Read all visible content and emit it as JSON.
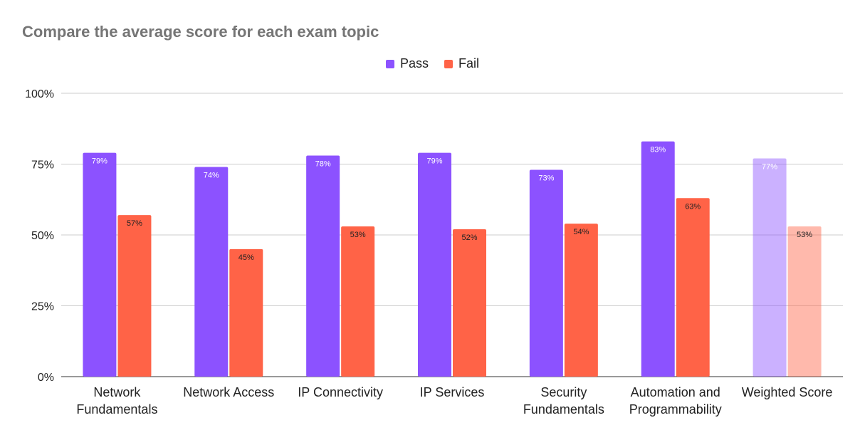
{
  "chart_data": {
    "type": "bar",
    "title": "Compare the average score for each exam topic",
    "categories": [
      [
        "Network",
        "Fundamentals"
      ],
      [
        "Network Access"
      ],
      [
        "IP Connectivity"
      ],
      [
        "IP Services"
      ],
      [
        "Security",
        "Fundamentals"
      ],
      [
        "Automation and",
        "Programmability"
      ],
      [
        "Weighted Score"
      ]
    ],
    "series": [
      {
        "name": "Pass",
        "color": "#8c52ff",
        "values": [
          79,
          74,
          78,
          79,
          73,
          83,
          77
        ],
        "labels": [
          "79%",
          "74%",
          "78%",
          "79%",
          "73%",
          "83%",
          "77%"
        ]
      },
      {
        "name": "Fail",
        "color": "#ff6347",
        "values": [
          57,
          45,
          53,
          52,
          54,
          63,
          53
        ],
        "labels": [
          "57%",
          "45%",
          "53%",
          "52%",
          "54%",
          "63%",
          "53%"
        ]
      }
    ],
    "highlight_faded_category_index": 6,
    "ylim": [
      0,
      100
    ],
    "yticks": [
      0,
      25,
      50,
      75,
      100
    ],
    "ytick_labels": [
      "0%",
      "25%",
      "50%",
      "75%",
      "100%"
    ],
    "xlabel": "",
    "ylabel": "",
    "grid": true,
    "legend_position": "top-center"
  }
}
